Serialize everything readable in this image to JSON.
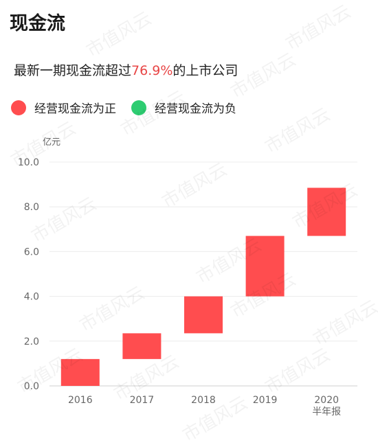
{
  "header": {
    "title": "现金流",
    "subtitle_prefix": "最新一期现金流超过",
    "subtitle_highlight": "76.9%",
    "subtitle_suffix": "的上市公司"
  },
  "legend": [
    {
      "label": "经营现金流为正",
      "color": "#ff4d4f"
    },
    {
      "label": "经营现金流为负",
      "color": "#2ecc71"
    }
  ],
  "watermark": "市值风云",
  "chart_data": {
    "type": "bar",
    "subtype": "waterfall",
    "unit": "亿元",
    "categories": [
      "2016",
      "2017",
      "2018",
      "2019",
      "2020\n半年报"
    ],
    "series": [
      {
        "values": [
          {
            "start": 0.0,
            "end": 1.2
          },
          {
            "start": 1.2,
            "end": 2.35
          },
          {
            "start": 2.35,
            "end": 4.0
          },
          {
            "start": 4.0,
            "end": 6.7
          },
          {
            "start": 6.7,
            "end": 8.85
          }
        ]
      }
    ],
    "ylim": [
      0,
      10
    ],
    "yticks": [
      "0.0",
      "2.0",
      "4.0",
      "6.0",
      "8.0",
      "10.0"
    ],
    "bar_color": "#ff4d4f",
    "grid": true
  }
}
